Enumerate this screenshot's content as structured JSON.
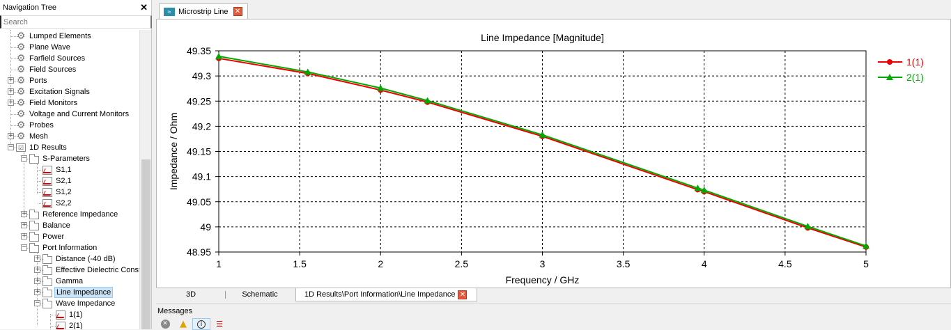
{
  "nav": {
    "title": "Navigation Tree",
    "close": "✕",
    "search_placeholder": "Search",
    "items": [
      {
        "label": "Lumped Elements",
        "icon": "gear-icon"
      },
      {
        "label": "Plane Wave",
        "icon": "gear-icon"
      },
      {
        "label": "Farfield Sources",
        "icon": "gear-icon"
      },
      {
        "label": "Field Sources",
        "icon": "gear-icon"
      },
      {
        "label": "Ports",
        "icon": "gear-icon"
      },
      {
        "label": "Excitation Signals",
        "icon": "gear-icon"
      },
      {
        "label": "Field Monitors",
        "icon": "gear-icon"
      },
      {
        "label": "Voltage and Current Monitors",
        "icon": "gear-icon"
      },
      {
        "label": "Probes",
        "icon": "gear-icon"
      },
      {
        "label": "Mesh",
        "icon": "gear-icon"
      },
      {
        "label": "1D Results",
        "icon": "checkbox-icon"
      },
      {
        "label": "S-Parameters",
        "icon": "folder-icon"
      },
      {
        "label": "S1,1",
        "icon": "plot-icon"
      },
      {
        "label": "S2,1",
        "icon": "plot-icon"
      },
      {
        "label": "S1,2",
        "icon": "plot-icon"
      },
      {
        "label": "S2,2",
        "icon": "plot-icon"
      },
      {
        "label": "Reference Impedance",
        "icon": "folder-icon"
      },
      {
        "label": "Balance",
        "icon": "folder-icon"
      },
      {
        "label": "Power",
        "icon": "folder-icon"
      },
      {
        "label": "Port Information",
        "icon": "folder-icon"
      },
      {
        "label": "Distance (-40 dB)",
        "icon": "folder-icon"
      },
      {
        "label": "Effective Dielectric Const",
        "icon": "folder-icon"
      },
      {
        "label": "Gamma",
        "icon": "folder-icon"
      },
      {
        "label": "Line Impedance",
        "icon": "folder-icon"
      },
      {
        "label": "Wave Impedance",
        "icon": "folder-icon"
      },
      {
        "label": "1(1)",
        "icon": "plot-icon"
      },
      {
        "label": "2(1)",
        "icon": "plot-icon"
      }
    ]
  },
  "doc_tab": {
    "label": "Microstrip Line",
    "icon": "microstrip-icon",
    "close": "✕"
  },
  "bottom_tabs": [
    "3D",
    "Schematic",
    "1D Results\\Port Information\\Line Impedance"
  ],
  "bottom_tab_close": "✕",
  "messages": {
    "title": "Messages",
    "tools": [
      "error-filter-icon",
      "warning-filter-icon",
      "info-filter-icon",
      "clear-messages-icon"
    ]
  },
  "colors": {
    "series1": "#ee0000",
    "series2": "#00aa00"
  },
  "chart_data": {
    "type": "line",
    "title": "Line Impedance [Magnitude]",
    "xlabel": "Frequency / GHz",
    "ylabel": "Impedance / Ohm",
    "xlim": [
      1,
      5
    ],
    "ylim": [
      48.95,
      49.35
    ],
    "xticks": [
      "1",
      "1.5",
      "2",
      "2.5",
      "3",
      "3.5",
      "4",
      "4.5",
      "5"
    ],
    "yticks": [
      "48.95",
      "49",
      "49.05",
      "49.1",
      "49.15",
      "49.2",
      "49.25",
      "49.3",
      "49.35"
    ],
    "grid": true,
    "legend": "right",
    "series": [
      {
        "name": "1(1)",
        "color": "#ee0000",
        "marker": "circle",
        "x": [
          1.0,
          1.55,
          2.0,
          2.29,
          3.0,
          3.96,
          4.0,
          4.64,
          5.0
        ],
        "y": [
          49.335,
          49.305,
          49.272,
          49.248,
          49.18,
          49.074,
          49.07,
          48.998,
          48.96
        ]
      },
      {
        "name": "2(1)",
        "color": "#00aa00",
        "marker": "triangle",
        "x": [
          1.0,
          1.55,
          2.0,
          2.29,
          3.0,
          3.96,
          4.0,
          4.64,
          5.0
        ],
        "y": [
          49.339,
          49.308,
          49.276,
          49.251,
          49.183,
          49.077,
          49.073,
          49.001,
          48.962
        ]
      }
    ]
  }
}
